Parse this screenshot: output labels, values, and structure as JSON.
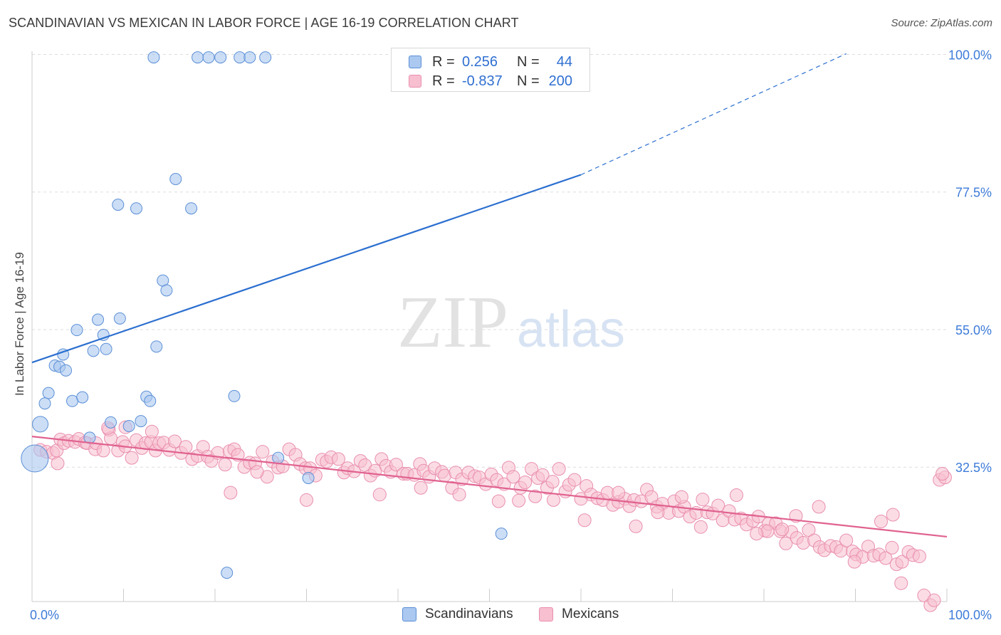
{
  "header": {
    "title": "SCANDINAVIAN VS MEXICAN IN LABOR FORCE | AGE 16-19 CORRELATION CHART",
    "source": "Source: ZipAtlas.com"
  },
  "watermark": {
    "zip": "ZIP",
    "atlas": "atlas"
  },
  "legend": {
    "rows": [
      {
        "r_label": "R =",
        "r_value": "0.256",
        "n_label": "N =",
        "n_value": "44"
      },
      {
        "r_label": "R =",
        "r_value": "-0.837",
        "n_label": "N =",
        "n_value": "200"
      }
    ]
  },
  "bottom_legend": {
    "items": [
      "Scandinavians",
      "Mexicans"
    ]
  },
  "colors": {
    "blue_fill": "#aac8f0",
    "blue_stroke": "#5b8fd6",
    "blue_line": "#2b6fd0",
    "pink_fill": "#f7bfd0",
    "pink_stroke": "#e98fae",
    "pink_line": "#e0628f",
    "tick_label": "#3d7bd8",
    "grid": "#dddddd"
  },
  "chart_data": {
    "type": "scatter",
    "title": "SCANDINAVIAN VS MEXICAN IN LABOR FORCE | AGE 16-19 CORRELATION CHART",
    "xlabel": "",
    "ylabel": "In Labor Force | Age 16-19",
    "xlim": [
      0,
      100
    ],
    "ylim": [
      12.5,
      102.5
    ],
    "x_tick_labels": [
      {
        "value": 0,
        "label": "0.0%"
      },
      {
        "value": 100,
        "label": "100.0%"
      }
    ],
    "y_tick_labels": [
      {
        "value": 100,
        "label": "100.0%"
      },
      {
        "value": 77.5,
        "label": "77.5%"
      },
      {
        "value": 55,
        "label": "55.0%"
      },
      {
        "value": 32.5,
        "label": "32.5%"
      }
    ],
    "grid": true,
    "legend_position": "top-center",
    "series": [
      {
        "name": "Scandinavians",
        "r": 0.256,
        "n": 44,
        "trend": {
          "x0": 0,
          "y0": 51.6,
          "x1": 60,
          "y1": 82.3,
          "dashed_to_x": 89,
          "dashed_to_y": 102.1
        },
        "points": [
          [
            13.3,
            101.5
          ],
          [
            18.1,
            101.5
          ],
          [
            19.3,
            101.5
          ],
          [
            20.6,
            101.5
          ],
          [
            22.7,
            101.5
          ],
          [
            23.8,
            101.5
          ],
          [
            25.5,
            101.5
          ],
          [
            15.7,
            81.6
          ],
          [
            9.4,
            77.4
          ],
          [
            11.4,
            76.8
          ],
          [
            17.4,
            76.8
          ],
          [
            14.3,
            65.0
          ],
          [
            14.7,
            63.4
          ],
          [
            4.9,
            56.9
          ],
          [
            7.2,
            58.6
          ],
          [
            9.6,
            58.8
          ],
          [
            7.8,
            56.1
          ],
          [
            3.4,
            52.9
          ],
          [
            2.5,
            51.1
          ],
          [
            3.0,
            50.9
          ],
          [
            3.7,
            50.3
          ],
          [
            6.7,
            53.5
          ],
          [
            8.1,
            53.8
          ],
          [
            13.6,
            54.2
          ],
          [
            1.8,
            46.6
          ],
          [
            1.4,
            44.9
          ],
          [
            4.4,
            45.3
          ],
          [
            5.5,
            45.9
          ],
          [
            12.5,
            46.0
          ],
          [
            12.9,
            45.3
          ],
          [
            22.1,
            46.1
          ],
          [
            0.9,
            41.5
          ],
          [
            8.6,
            41.8
          ],
          [
            10.6,
            41.2
          ],
          [
            11.9,
            42.0
          ],
          [
            6.3,
            39.3
          ],
          [
            26.9,
            36.0
          ],
          [
            30.2,
            32.7
          ],
          [
            0.3,
            35.9
          ],
          [
            51.3,
            23.6
          ],
          [
            21.3,
            17.2
          ]
        ],
        "sizes": {
          "0.3,35.9": "large",
          "0.9,41.5": "medium"
        }
      },
      {
        "name": "Mexicans",
        "r": -0.837,
        "n": 200,
        "trend": {
          "x0": 0,
          "y0": 39.5,
          "x1": 100,
          "y1": 23.1
        },
        "points": [
          [
            0.9,
            37.3
          ],
          [
            1.6,
            37.0
          ],
          [
            2.3,
            36.8
          ],
          [
            2.7,
            37.2
          ],
          [
            3.1,
            39.0
          ],
          [
            3.5,
            38.4
          ],
          [
            4.0,
            38.8
          ],
          [
            4.7,
            38.6
          ],
          [
            5.1,
            39.1
          ],
          [
            5.8,
            38.5
          ],
          [
            6.0,
            38.4
          ],
          [
            6.9,
            37.4
          ],
          [
            7.0,
            38.4
          ],
          [
            7.8,
            37.2
          ],
          [
            8.4,
            40.6
          ],
          [
            8.6,
            39.2
          ],
          [
            9.4,
            37.2
          ],
          [
            9.9,
            38.6
          ],
          [
            10.2,
            37.9
          ],
          [
            10.9,
            36.0
          ],
          [
            11.4,
            38.9
          ],
          [
            12.0,
            37.6
          ],
          [
            12.4,
            38.4
          ],
          [
            13.0,
            38.6
          ],
          [
            13.5,
            37.2
          ],
          [
            13.9,
            38.4
          ],
          [
            14.4,
            38.5
          ],
          [
            15.0,
            37.3
          ],
          [
            15.6,
            38.7
          ],
          [
            16.3,
            36.8
          ],
          [
            16.8,
            37.8
          ],
          [
            17.5,
            35.8
          ],
          [
            18.1,
            36.3
          ],
          [
            18.7,
            37.8
          ],
          [
            19.2,
            36.2
          ],
          [
            19.6,
            35.5
          ],
          [
            20.3,
            36.8
          ],
          [
            21.1,
            34.9
          ],
          [
            21.6,
            37.1
          ],
          [
            22.1,
            37.4
          ],
          [
            22.5,
            36.5
          ],
          [
            23.2,
            34.5
          ],
          [
            23.8,
            35.2
          ],
          [
            24.4,
            35.1
          ],
          [
            25.2,
            37.0
          ],
          [
            25.7,
            32.9
          ],
          [
            26.3,
            35.4
          ],
          [
            26.9,
            34.4
          ],
          [
            27.4,
            34.6
          ],
          [
            28.1,
            37.4
          ],
          [
            28.8,
            36.5
          ],
          [
            29.3,
            35.0
          ],
          [
            29.9,
            34.3
          ],
          [
            30.4,
            34.3
          ],
          [
            31.0,
            33.1
          ],
          [
            31.7,
            35.7
          ],
          [
            32.2,
            35.4
          ],
          [
            32.7,
            36.1
          ],
          [
            33.5,
            35.8
          ],
          [
            34.1,
            33.6
          ],
          [
            34.5,
            34.3
          ],
          [
            35.2,
            33.8
          ],
          [
            35.9,
            35.5
          ],
          [
            36.4,
            34.8
          ],
          [
            37.0,
            33.1
          ],
          [
            37.5,
            33.9
          ],
          [
            38.2,
            35.8
          ],
          [
            38.7,
            34.7
          ],
          [
            39.2,
            33.7
          ],
          [
            39.8,
            34.9
          ],
          [
            40.6,
            33.4
          ],
          [
            41.0,
            33.4
          ],
          [
            41.8,
            33.2
          ],
          [
            42.4,
            35.0
          ],
          [
            42.8,
            33.9
          ],
          [
            43.4,
            32.9
          ],
          [
            44.0,
            34.3
          ],
          [
            44.8,
            33.7
          ],
          [
            45.1,
            33.1
          ],
          [
            45.9,
            31.1
          ],
          [
            46.3,
            33.6
          ],
          [
            47.0,
            32.5
          ],
          [
            47.7,
            33.6
          ],
          [
            48.4,
            33.0
          ],
          [
            48.9,
            32.8
          ],
          [
            49.6,
            31.7
          ],
          [
            50.2,
            33.3
          ],
          [
            50.8,
            32.4
          ],
          [
            51.6,
            31.7
          ],
          [
            52.1,
            34.4
          ],
          [
            52.6,
            32.9
          ],
          [
            53.4,
            31.1
          ],
          [
            53.9,
            32.0
          ],
          [
            54.6,
            34.2
          ],
          [
            55.3,
            32.7
          ],
          [
            55.8,
            33.2
          ],
          [
            56.3,
            31.1
          ],
          [
            56.9,
            32.1
          ],
          [
            57.6,
            34.2
          ],
          [
            58.3,
            30.5
          ],
          [
            58.7,
            31.6
          ],
          [
            59.3,
            32.4
          ],
          [
            60.0,
            29.3
          ],
          [
            60.6,
            31.4
          ],
          [
            61.1,
            30.0
          ],
          [
            61.8,
            29.4
          ],
          [
            62.4,
            29.1
          ],
          [
            62.9,
            30.3
          ],
          [
            63.5,
            28.3
          ],
          [
            64.1,
            28.8
          ],
          [
            64.8,
            29.3
          ],
          [
            65.3,
            28.1
          ],
          [
            65.8,
            29.1
          ],
          [
            66.6,
            28.9
          ],
          [
            67.2,
            30.8
          ],
          [
            67.7,
            29.6
          ],
          [
            68.3,
            28.0
          ],
          [
            68.9,
            28.5
          ],
          [
            69.6,
            27.0
          ],
          [
            70.2,
            28.9
          ],
          [
            70.7,
            27.3
          ],
          [
            71.3,
            28.0
          ],
          [
            71.9,
            26.4
          ],
          [
            72.6,
            27.0
          ],
          [
            73.3,
            29.2
          ],
          [
            73.8,
            27.1
          ],
          [
            74.4,
            26.9
          ],
          [
            75.0,
            28.2
          ],
          [
            75.5,
            25.8
          ],
          [
            76.2,
            27.3
          ],
          [
            76.8,
            25.9
          ],
          [
            77.5,
            26.1
          ],
          [
            78.1,
            25.1
          ],
          [
            78.8,
            25.7
          ],
          [
            79.4,
            26.4
          ],
          [
            80.1,
            24.1
          ],
          [
            80.5,
            25.2
          ],
          [
            81.3,
            25.3
          ],
          [
            81.8,
            24.0
          ],
          [
            82.4,
            22.0
          ],
          [
            83.0,
            23.9
          ],
          [
            83.6,
            22.9
          ],
          [
            84.3,
            22.1
          ],
          [
            84.9,
            24.2
          ],
          [
            85.5,
            22.5
          ],
          [
            86.1,
            21.4
          ],
          [
            86.6,
            20.9
          ],
          [
            87.3,
            21.6
          ],
          [
            87.9,
            21.4
          ],
          [
            88.4,
            20.8
          ],
          [
            89.0,
            22.5
          ],
          [
            89.7,
            20.7
          ],
          [
            90.1,
            20.2
          ],
          [
            90.8,
            19.8
          ],
          [
            91.4,
            21.5
          ],
          [
            92.0,
            20.0
          ],
          [
            92.6,
            20.2
          ],
          [
            93.3,
            19.6
          ],
          [
            94.0,
            21.3
          ],
          [
            94.5,
            18.6
          ],
          [
            95.1,
            19.0
          ],
          [
            95.8,
            20.6
          ],
          [
            96.3,
            20.1
          ],
          [
            97.0,
            19.9
          ],
          [
            97.5,
            13.5
          ],
          [
            98.2,
            11.9
          ],
          [
            98.6,
            12.7
          ],
          [
            99.2,
            32.4
          ],
          [
            99.8,
            32.8
          ],
          [
            99.5,
            33.4
          ],
          [
            8.3,
            40.9
          ],
          [
            13.1,
            40.3
          ],
          [
            10.2,
            41.0
          ],
          [
            57.0,
            29.1
          ],
          [
            38.0,
            30.0
          ],
          [
            24.6,
            33.7
          ],
          [
            71.0,
            29.6
          ],
          [
            80.4,
            24.0
          ],
          [
            89.9,
            19.0
          ],
          [
            95.0,
            15.5
          ],
          [
            77.0,
            29.9
          ],
          [
            64.1,
            30.3
          ],
          [
            51.0,
            28.9
          ],
          [
            46.7,
            30.0
          ],
          [
            2.8,
            35.1
          ],
          [
            21.7,
            30.3
          ],
          [
            30.0,
            29.1
          ],
          [
            53.2,
            29.0
          ],
          [
            60.4,
            25.8
          ],
          [
            68.4,
            27.1
          ],
          [
            83.5,
            26.5
          ],
          [
            86.0,
            28.0
          ],
          [
            92.8,
            25.6
          ],
          [
            94.1,
            26.7
          ],
          [
            82.0,
            24.3
          ],
          [
            66.0,
            24.8
          ],
          [
            73.1,
            24.7
          ],
          [
            79.2,
            23.6
          ],
          [
            55.0,
            29.7
          ],
          [
            42.5,
            31.1
          ]
        ]
      }
    ]
  }
}
